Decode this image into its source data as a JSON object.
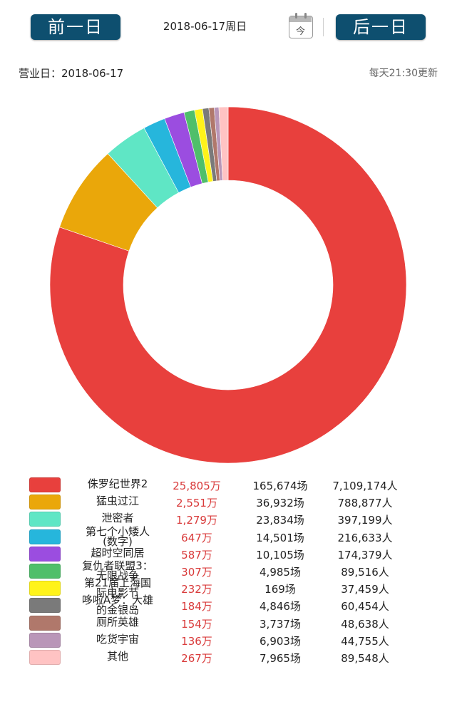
{
  "nav": {
    "prev_label": "前一日",
    "date_title": "2018-06-17周日",
    "today_label": "今",
    "next_label": "后一日"
  },
  "info": {
    "business_day": "营业日：2018-06-17",
    "update_note": "每天21:30更新"
  },
  "chart_data": {
    "type": "pie",
    "variant": "donut",
    "categories": [
      "侏罗纪世界2",
      "猛虫过江",
      "泄密者",
      "第七个小矮人(数字)",
      "超时空同居",
      "复仇者联盟3：无限战争",
      "第21届上海国际电影节",
      "哆啦A梦：大雄的金银岛",
      "厕所英雄",
      "吃货宇宙",
      "其他"
    ],
    "values": [
      25805,
      2551,
      1279,
      647,
      587,
      307,
      232,
      184,
      154,
      136,
      267
    ],
    "unit": "万",
    "colors": [
      "#e8403d",
      "#eaa70a",
      "#5fe6c5",
      "#26b6dc",
      "#9b4de0",
      "#4fbf6a",
      "#fff31a",
      "#7a7a7a",
      "#b0786b",
      "#b996b8",
      "#ffc3c3"
    ]
  },
  "legend": [
    {
      "name": "侏罗纪世界2",
      "box": "25,805万",
      "shows": "165,674场",
      "people": "7,109,174人"
    },
    {
      "name": "猛虫过江",
      "box": "2,551万",
      "shows": "36,932场",
      "people": "788,877人"
    },
    {
      "name": "泄密者",
      "box": "1,279万",
      "shows": "23,834场",
      "people": "397,199人"
    },
    {
      "name": "第七个小矮人\n(数字)",
      "box": "647万",
      "shows": "14,501场",
      "people": "216,633人"
    },
    {
      "name": "超时空同居",
      "box": "587万",
      "shows": "10,105场",
      "people": "174,379人"
    },
    {
      "name": "复仇者联盟3：\n无限战争",
      "box": "307万",
      "shows": "4,985场",
      "people": "89,516人"
    },
    {
      "name": "第21届上海国\n际电影节",
      "box": "232万",
      "shows": "169场",
      "people": "37,459人"
    },
    {
      "name": "哆啦A梦：大雄\n的金银岛",
      "box": "184万",
      "shows": "4,846场",
      "people": "60,454人"
    },
    {
      "name": "厕所英雄",
      "box": "154万",
      "shows": "3,737场",
      "people": "48,638人"
    },
    {
      "name": "吃货宇宙",
      "box": "136万",
      "shows": "6,903场",
      "people": "44,755人"
    },
    {
      "name": "其他",
      "box": "267万",
      "shows": "7,965场",
      "people": "89,548人"
    }
  ]
}
